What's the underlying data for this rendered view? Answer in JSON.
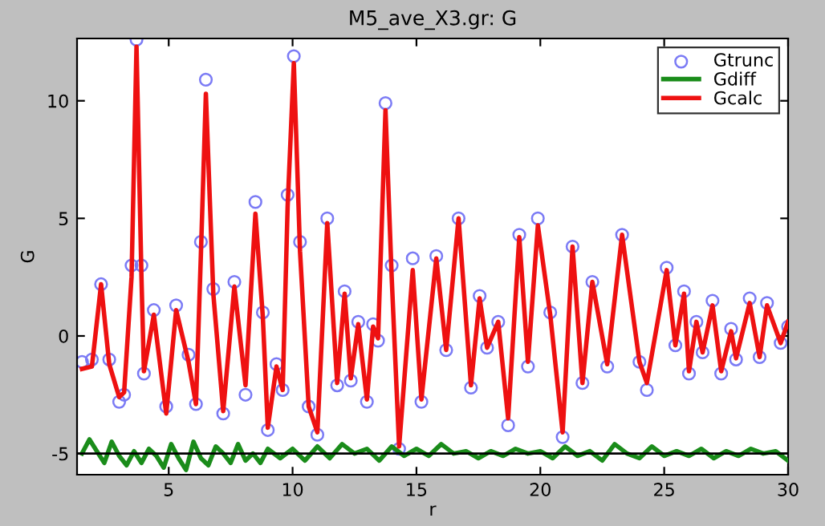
{
  "chart_data": {
    "type": "line",
    "title": "M5_ave_X3.gr: G",
    "xlabel": "r",
    "ylabel": "G",
    "xlim": [
      1.3,
      30
    ],
    "ylim": [
      -5.9,
      12.65
    ],
    "xticks": [
      5,
      10,
      15,
      20,
      25,
      30
    ],
    "yticks": [
      -5,
      0,
      5,
      10
    ],
    "grid": false,
    "legend": "top right",
    "ref_lines": [
      {
        "axis": "y",
        "value": -5,
        "color": "#000000"
      }
    ],
    "series": [
      {
        "name": "Gtrunc",
        "type": "scatter",
        "marker": "circle",
        "color": "#7b7bf5",
        "x": [
          1.5,
          1.9,
          2.27,
          2.6,
          3.0,
          3.2,
          3.5,
          3.7,
          3.9,
          4.0,
          4.4,
          4.9,
          5.3,
          5.8,
          6.1,
          6.3,
          6.5,
          6.8,
          7.2,
          7.65,
          8.1,
          8.5,
          8.8,
          9.0,
          9.35,
          9.6,
          9.8,
          10.05,
          10.3,
          10.65,
          11.0,
          11.4,
          11.8,
          12.1,
          12.35,
          12.65,
          13.0,
          13.25,
          13.45,
          13.75,
          14.0,
          14.3,
          14.85,
          15.2,
          15.8,
          16.2,
          16.7,
          17.2,
          17.55,
          17.85,
          18.3,
          18.7,
          19.15,
          19.5,
          19.9,
          20.4,
          20.9,
          21.3,
          21.7,
          22.1,
          22.7,
          23.3,
          24.0,
          24.3,
          25.1,
          25.45,
          25.8,
          26.0,
          26.3,
          26.55,
          26.95,
          27.3,
          27.7,
          27.9,
          28.45,
          28.85,
          29.15,
          29.7,
          30.0
        ],
        "values": [
          -1.1,
          -1.0,
          2.2,
          -1.0,
          -2.8,
          -2.5,
          3.0,
          12.6,
          3.0,
          -1.6,
          1.1,
          -3.0,
          1.3,
          -0.8,
          -2.9,
          4.0,
          10.9,
          2.0,
          -3.3,
          2.3,
          -2.5,
          5.7,
          1.0,
          -4.0,
          -1.2,
          -2.3,
          6.0,
          11.9,
          4.0,
          -3.0,
          -4.2,
          5.0,
          -2.1,
          1.9,
          -1.9,
          0.6,
          -2.8,
          0.5,
          -0.2,
          9.9,
          3.0,
          -4.8,
          3.3,
          -2.8,
          3.4,
          -0.6,
          5.0,
          -2.2,
          1.7,
          -0.5,
          0.6,
          -3.8,
          4.3,
          -1.3,
          5.0,
          1.0,
          -4.3,
          3.8,
          -2.0,
          2.3,
          -1.3,
          4.3,
          -1.1,
          -2.3,
          2.9,
          -0.4,
          1.9,
          -1.6,
          0.6,
          -0.7,
          1.5,
          -1.6,
          0.3,
          -1.0,
          1.6,
          -0.9,
          1.4,
          -0.3,
          0.4
        ]
      },
      {
        "name": "Gdiff",
        "color": "#1a8c1a",
        "x": [
          1.5,
          1.8,
          2.1,
          2.4,
          2.7,
          3.0,
          3.3,
          3.6,
          3.9,
          4.2,
          4.5,
          4.8,
          5.1,
          5.4,
          5.7,
          6.0,
          6.3,
          6.6,
          6.9,
          7.2,
          7.5,
          7.8,
          8.1,
          8.4,
          8.7,
          9.0,
          9.5,
          10.0,
          10.5,
          11.0,
          11.5,
          12.0,
          12.5,
          13.0,
          13.5,
          14.0,
          14.5,
          15.0,
          15.5,
          16.0,
          16.5,
          17.0,
          17.5,
          18.0,
          18.5,
          19.0,
          19.5,
          20.0,
          20.5,
          21.0,
          21.5,
          22.0,
          22.5,
          23.0,
          23.5,
          24.0,
          24.5,
          25.0,
          25.5,
          26.0,
          26.5,
          27.0,
          27.5,
          28.0,
          28.5,
          29.0,
          29.5,
          30.0
        ],
        "values": [
          -5.0,
          -4.4,
          -4.9,
          -5.4,
          -4.5,
          -5.1,
          -5.5,
          -4.9,
          -5.4,
          -4.8,
          -5.1,
          -5.6,
          -4.6,
          -5.2,
          -5.7,
          -4.5,
          -5.2,
          -5.5,
          -4.7,
          -5.0,
          -5.4,
          -4.6,
          -5.3,
          -5.0,
          -5.4,
          -4.8,
          -5.2,
          -4.8,
          -5.3,
          -4.7,
          -5.2,
          -4.6,
          -5.0,
          -4.8,
          -5.3,
          -4.7,
          -5.1,
          -4.8,
          -5.1,
          -4.6,
          -5.0,
          -4.9,
          -5.2,
          -4.9,
          -5.1,
          -4.8,
          -5.0,
          -4.9,
          -5.2,
          -4.7,
          -5.1,
          -4.9,
          -5.3,
          -4.6,
          -5.0,
          -5.2,
          -4.7,
          -5.1,
          -4.9,
          -5.1,
          -4.8,
          -5.2,
          -4.9,
          -5.1,
          -4.8,
          -5.0,
          -4.9,
          -5.3
        ]
      },
      {
        "name": "Gcalc",
        "color": "#ee1111",
        "x": [
          1.5,
          1.9,
          2.27,
          2.6,
          3.0,
          3.2,
          3.5,
          3.7,
          3.9,
          4.0,
          4.4,
          4.9,
          5.3,
          5.8,
          6.1,
          6.3,
          6.5,
          6.8,
          7.2,
          7.65,
          8.1,
          8.5,
          8.8,
          9.0,
          9.35,
          9.6,
          9.8,
          10.05,
          10.3,
          10.65,
          11.0,
          11.4,
          11.8,
          12.1,
          12.35,
          12.65,
          13.0,
          13.25,
          13.45,
          13.75,
          14.0,
          14.3,
          14.85,
          15.2,
          15.8,
          16.2,
          16.7,
          17.2,
          17.55,
          17.85,
          18.3,
          18.7,
          19.15,
          19.5,
          19.9,
          20.4,
          20.9,
          21.3,
          21.7,
          22.1,
          22.7,
          23.3,
          24.0,
          24.3,
          25.1,
          25.45,
          25.8,
          26.0,
          26.3,
          26.55,
          26.95,
          27.3,
          27.7,
          27.9,
          28.45,
          28.85,
          29.15,
          29.7,
          30.0
        ],
        "values": [
          -1.4,
          -1.3,
          2.2,
          -1.2,
          -2.6,
          -2.4,
          2.5,
          12.3,
          2.5,
          -1.5,
          0.9,
          -3.3,
          1.1,
          -1.1,
          -2.9,
          3.5,
          10.3,
          1.8,
          -3.2,
          2.1,
          -2.1,
          5.2,
          0.8,
          -3.9,
          -1.3,
          -2.3,
          5.5,
          11.6,
          3.6,
          -3.0,
          -4.1,
          4.8,
          -2.0,
          1.8,
          -1.8,
          0.5,
          -2.7,
          0.4,
          -0.1,
          9.6,
          2.5,
          -4.7,
          2.8,
          -2.7,
          3.3,
          -0.6,
          5.0,
          -2.1,
          1.6,
          -0.5,
          0.6,
          -3.5,
          4.2,
          -1.1,
          4.7,
          0.9,
          -4.1,
          3.8,
          -2.0,
          2.3,
          -1.2,
          4.3,
          -1.1,
          -2.0,
          2.8,
          -0.4,
          1.8,
          -1.5,
          0.6,
          -0.7,
          1.3,
          -1.5,
          0.2,
          -0.95,
          1.4,
          -0.9,
          1.3,
          -0.3,
          0.6
        ]
      }
    ]
  }
}
